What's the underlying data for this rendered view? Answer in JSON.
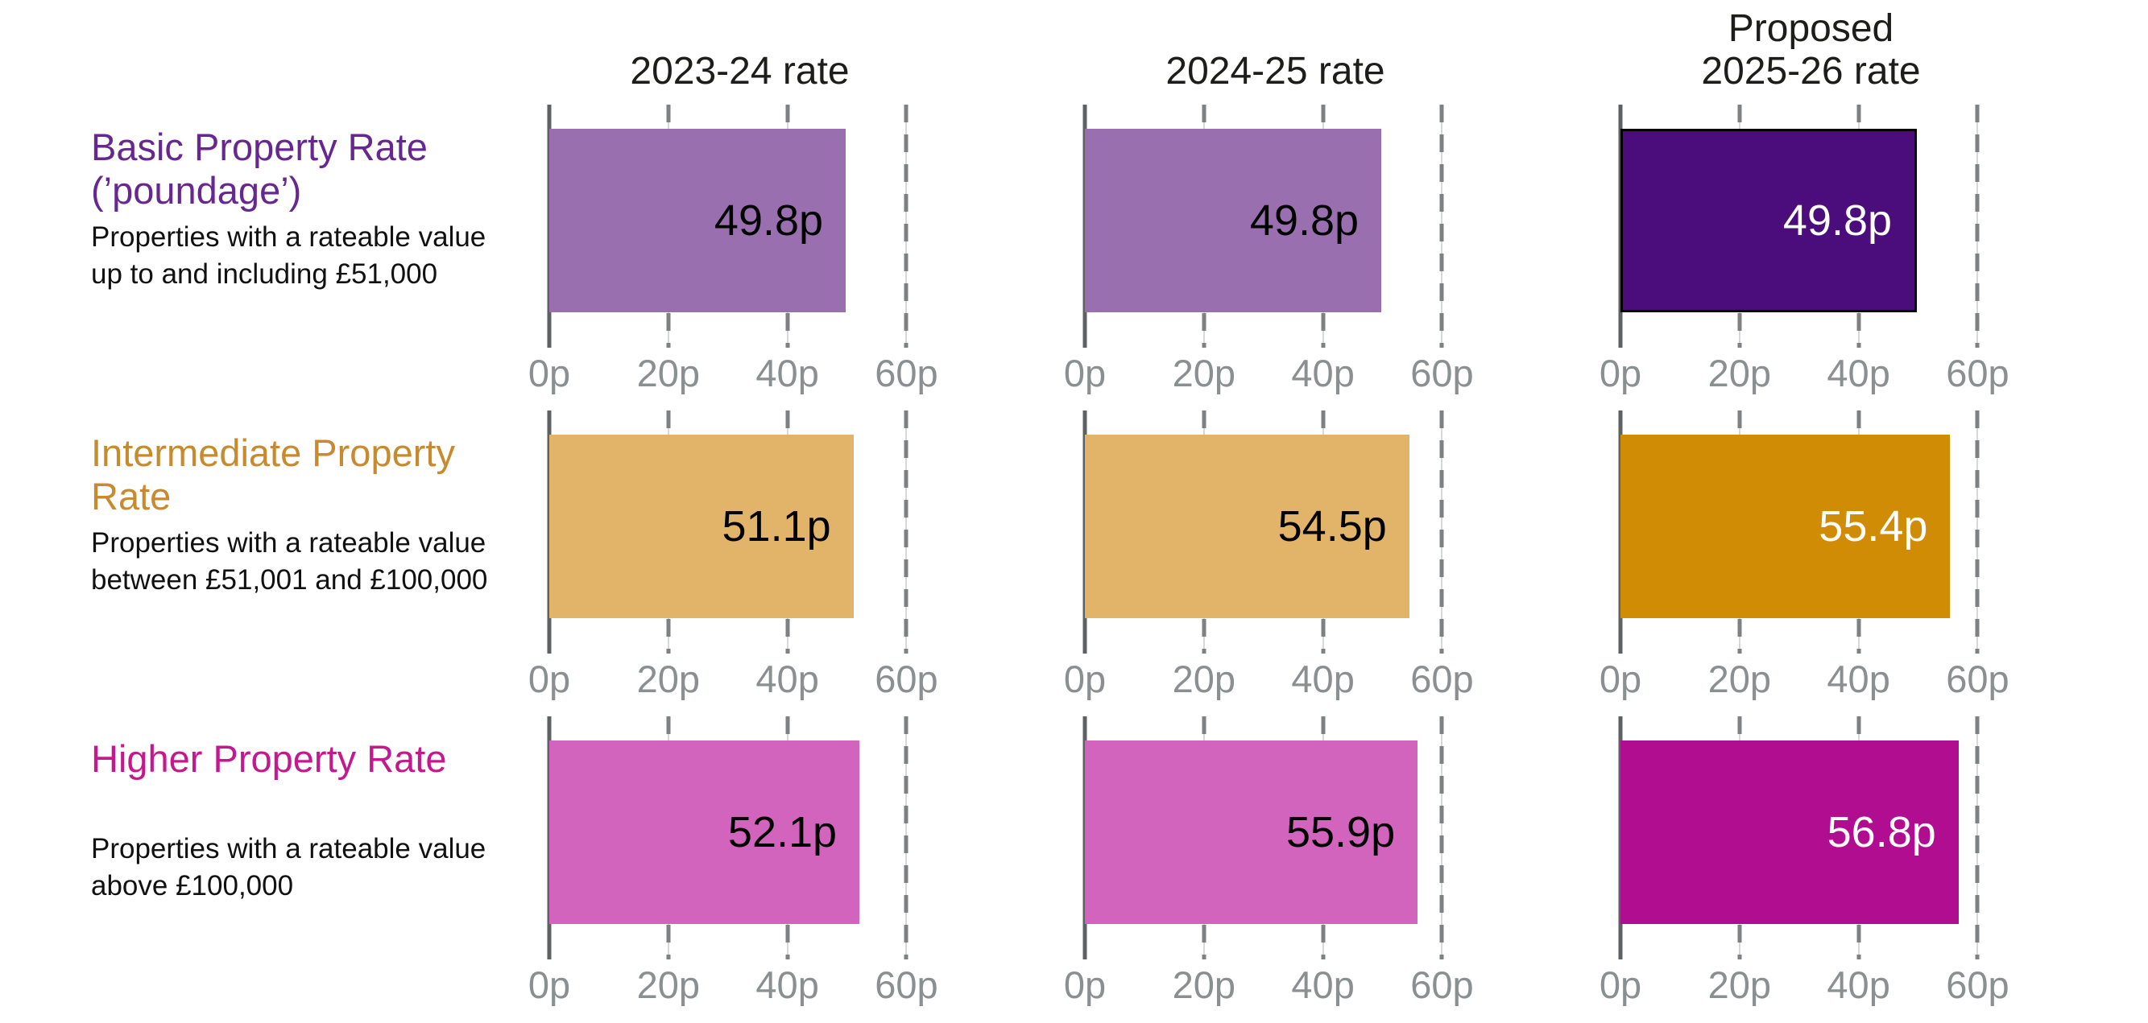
{
  "chart_data": {
    "type": "bar",
    "orientation": "horizontal",
    "unit": "p",
    "xlim": [
      0,
      64
    ],
    "ticks": [
      0,
      20,
      40,
      60
    ],
    "tick_labels": [
      "0p",
      "20p",
      "40p",
      "60p"
    ],
    "grid": "dashed-vertical",
    "columns": [
      "2023-24 rate",
      "2024-25 rate",
      "Proposed\n2025-26 rate"
    ],
    "rows": [
      {
        "heading": "Basic Property Rate\n(’poundage’)",
        "description": "Properties with a rateable value\nup to and including £51,000",
        "heading_color": "#66278F",
        "values": [
          49.8,
          49.8,
          49.8
        ],
        "labels": [
          "49.8p",
          "49.8p",
          "49.8p"
        ],
        "bar_colors": [
          "#9A6FB0",
          "#9A6FB0",
          "#4B0C7C"
        ],
        "label_colors": [
          "#000000",
          "#000000",
          "#FFFFFF"
        ],
        "proposed_border": "#000000"
      },
      {
        "heading": "Intermediate Property\nRate",
        "description": "Properties with a rateable value\nbetween £51,001 and £100,000",
        "heading_color": "#C88A2E",
        "values": [
          51.1,
          54.5,
          55.4
        ],
        "labels": [
          "51.1p",
          "54.5p",
          "55.4p"
        ],
        "bar_colors": [
          "#E1B469",
          "#E1B469",
          "#D18C06"
        ],
        "label_colors": [
          "#000000",
          "#000000",
          "#FFFFFF"
        ],
        "proposed_border": null
      },
      {
        "heading": "Higher Property Rate",
        "description": "Properties with a rateable value\nabove £100,000",
        "heading_color": "#C4198E",
        "values": [
          52.1,
          55.9,
          56.8
        ],
        "labels": [
          "52.1p",
          "55.9p",
          "56.8p"
        ],
        "bar_colors": [
          "#D364BE",
          "#D364BE",
          "#B10D90"
        ],
        "label_colors": [
          "#000000",
          "#000000",
          "#FFFFFF"
        ],
        "proposed_border": null
      }
    ],
    "colors": {
      "axis_zero_line": "#5d6163",
      "grid_dash": "#7d8183",
      "grid_underlay": "#d8d8d8",
      "tick_text": "#8a8f91",
      "header_text": "#1d1d1b"
    }
  }
}
